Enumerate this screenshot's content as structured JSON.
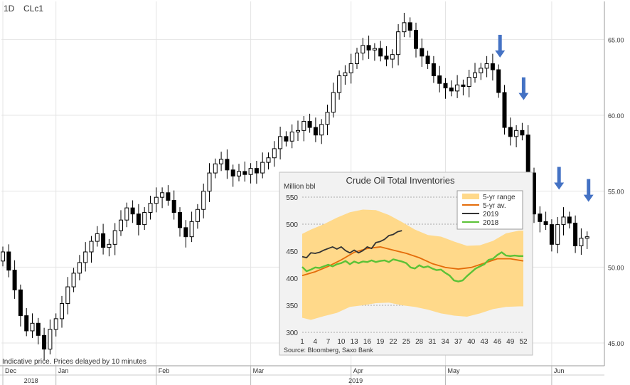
{
  "header": {
    "interval": "1D",
    "symbol": "CLc1"
  },
  "footer_note": "Indicative price. Prices delayed by 10 minutes",
  "colors": {
    "candle": "#000000",
    "arrow": "#4472C4",
    "grid": "#e4e4e4",
    "inset_bg": "#f2f2f2"
  },
  "chart_data": [
    {
      "type": "candlestick",
      "ylim": [
        43.5,
        67.5
      ],
      "y_ticks": [
        "45.00",
        "50.00",
        "55.00",
        "60.00",
        "65.00"
      ],
      "x_month_labels": [
        "Dec",
        "Jan",
        "Feb",
        "Mar",
        "Apr",
        "May",
        "Jun"
      ],
      "x_year_labels": [
        "2018",
        "2019"
      ],
      "close_path": [
        [
          0,
          51.0
        ],
        [
          1,
          49.8
        ],
        [
          2,
          48.5
        ],
        [
          3,
          46.8
        ],
        [
          4,
          45.8
        ],
        [
          5,
          46.3
        ],
        [
          6,
          45.5
        ],
        [
          7,
          44.6
        ],
        [
          8,
          45.9
        ],
        [
          9,
          46.6
        ],
        [
          10,
          47.6
        ],
        [
          11,
          48.7
        ],
        [
          12,
          49.6
        ],
        [
          13,
          50.3
        ],
        [
          14,
          51.0
        ],
        [
          15,
          51.7
        ],
        [
          16,
          52.2
        ],
        [
          17,
          51.3
        ],
        [
          18,
          51.5
        ],
        [
          19,
          52.4
        ],
        [
          20,
          53.1
        ],
        [
          21,
          53.9
        ],
        [
          22,
          53.5
        ],
        [
          23,
          52.8
        ],
        [
          24,
          53.6
        ],
        [
          25,
          54.2
        ],
        [
          26,
          54.6
        ],
        [
          27,
          54.9
        ],
        [
          28,
          54.4
        ],
        [
          29,
          53.6
        ],
        [
          30,
          52.6
        ],
        [
          31,
          52.0
        ],
        [
          32,
          53.0
        ],
        [
          33,
          53.8
        ],
        [
          34,
          55.0
        ],
        [
          35,
          56.2
        ],
        [
          36,
          56.8
        ],
        [
          37,
          57.1
        ],
        [
          38,
          56.4
        ],
        [
          39,
          56.0
        ],
        [
          40,
          56.3
        ],
        [
          41,
          56.1
        ],
        [
          42,
          56.5
        ],
        [
          43,
          56.2
        ],
        [
          44,
          56.9
        ],
        [
          45,
          57.2
        ],
        [
          46,
          57.8
        ],
        [
          47,
          58.6
        ],
        [
          48,
          58.3
        ],
        [
          49,
          58.9
        ],
        [
          50,
          59.0
        ],
        [
          51,
          59.6
        ],
        [
          52,
          59.2
        ],
        [
          53,
          58.7
        ],
        [
          54,
          59.4
        ],
        [
          55,
          60.2
        ],
        [
          56,
          61.5
        ],
        [
          57,
          62.6
        ],
        [
          58,
          62.8
        ],
        [
          59,
          63.4
        ],
        [
          60,
          64.1
        ],
        [
          61,
          64.6
        ],
        [
          62,
          64.3
        ],
        [
          63,
          64.4
        ],
        [
          64,
          63.9
        ],
        [
          65,
          63.7
        ],
        [
          66,
          64.0
        ],
        [
          67,
          65.5
        ],
        [
          68,
          66.1
        ],
        [
          69,
          65.6
        ],
        [
          70,
          64.4
        ],
        [
          71,
          63.9
        ],
        [
          72,
          63.4
        ],
        [
          73,
          62.6
        ],
        [
          74,
          62.1
        ],
        [
          75,
          61.8
        ],
        [
          76,
          61.6
        ],
        [
          77,
          62.0
        ],
        [
          78,
          61.9
        ],
        [
          79,
          62.5
        ],
        [
          80,
          62.8
        ],
        [
          81,
          63.1
        ],
        [
          82,
          63.4
        ],
        [
          83,
          63.0
        ],
        [
          84,
          61.5
        ],
        [
          85,
          59.2
        ],
        [
          86,
          58.6
        ],
        [
          87,
          59.0
        ],
        [
          88,
          58.7
        ],
        [
          89,
          56.2
        ],
        [
          90,
          53.5
        ],
        [
          91,
          53.0
        ],
        [
          92,
          52.8
        ],
        [
          93,
          51.5
        ],
        [
          94,
          52.8
        ],
        [
          95,
          53.3
        ],
        [
          96,
          52.9
        ],
        [
          97,
          51.4
        ],
        [
          98,
          51.9
        ],
        [
          99,
          52.0
        ]
      ],
      "arrows": [
        84,
        88,
        94,
        99
      ]
    },
    {
      "type": "line",
      "title": "Crude Oil Total Inventories",
      "ylabel": "Million bbl",
      "ylim": [
        300,
        550
      ],
      "y_ticks": [
        300,
        350,
        400,
        450,
        500,
        550
      ],
      "x_ticks": [
        1,
        4,
        7,
        10,
        13,
        16,
        19,
        22,
        25,
        28,
        31,
        34,
        37,
        40,
        43,
        46,
        49,
        52
      ],
      "source": "Source: Bloomberg, Saxo Bank",
      "legend": [
        "5-yr range",
        "5-yr av.",
        "2019",
        "2018"
      ],
      "range_min": [
        [
          1,
          327
        ],
        [
          3,
          323
        ],
        [
          6,
          330
        ],
        [
          9,
          336
        ],
        [
          12,
          347
        ],
        [
          15,
          350
        ],
        [
          18,
          354
        ],
        [
          21,
          355
        ],
        [
          24,
          350
        ],
        [
          27,
          347
        ],
        [
          30,
          342
        ],
        [
          33,
          335
        ],
        [
          36,
          331
        ],
        [
          39,
          329
        ],
        [
          42,
          335
        ],
        [
          45,
          343
        ],
        [
          48,
          347
        ],
        [
          51,
          348
        ],
        [
          52,
          348
        ]
      ],
      "range_max": [
        [
          1,
          482
        ],
        [
          3,
          490
        ],
        [
          6,
          500
        ],
        [
          9,
          512
        ],
        [
          12,
          522
        ],
        [
          15,
          527
        ],
        [
          18,
          526
        ],
        [
          21,
          517
        ],
        [
          24,
          504
        ],
        [
          27,
          490
        ],
        [
          30,
          480
        ],
        [
          33,
          477
        ],
        [
          36,
          468
        ],
        [
          39,
          460
        ],
        [
          42,
          461
        ],
        [
          45,
          469
        ],
        [
          48,
          483
        ],
        [
          51,
          488
        ],
        [
          52,
          488
        ]
      ],
      "series": [
        {
          "name": "5-yr av.",
          "color": "#E46C0A",
          "values": [
            [
              1,
              405
            ],
            [
              4,
              412
            ],
            [
              7,
              422
            ],
            [
              10,
              434
            ],
            [
              13,
              448
            ],
            [
              16,
              455
            ],
            [
              19,
              458
            ],
            [
              22,
              452
            ],
            [
              25,
              446
            ],
            [
              28,
              438
            ],
            [
              31,
              427
            ],
            [
              34,
              420
            ],
            [
              37,
              417
            ],
            [
              40,
              420
            ],
            [
              43,
              428
            ],
            [
              46,
              436
            ],
            [
              49,
              436
            ],
            [
              52,
              432
            ]
          ]
        },
        {
          "name": "2019",
          "color": "#333333",
          "values": [
            [
              1,
              440
            ],
            [
              2,
              438
            ],
            [
              3,
              447
            ],
            [
              4,
              446
            ],
            [
              5,
              448
            ],
            [
              6,
              452
            ],
            [
              7,
              455
            ],
            [
              8,
              458
            ],
            [
              9,
              454
            ],
            [
              10,
              458
            ],
            [
              11,
              451
            ],
            [
              12,
              447
            ],
            [
              13,
              452
            ],
            [
              14,
              447
            ],
            [
              15,
              451
            ],
            [
              16,
              458
            ],
            [
              17,
              455
            ],
            [
              18,
              466
            ],
            [
              19,
              468
            ],
            [
              20,
              472
            ],
            [
              21,
              479
            ],
            [
              22,
              481
            ],
            [
              23,
              486
            ],
            [
              24,
              488
            ]
          ]
        },
        {
          "name": "2018",
          "color": "#5BC236",
          "values": [
            [
              1,
              421
            ],
            [
              2,
              413
            ],
            [
              3,
              416
            ],
            [
              4,
              420
            ],
            [
              5,
              419
            ],
            [
              6,
              422
            ],
            [
              7,
              425
            ],
            [
              8,
              422
            ],
            [
              9,
              426
            ],
            [
              10,
              428
            ],
            [
              11,
              432
            ],
            [
              12,
              426
            ],
            [
              13,
              431
            ],
            [
              14,
              428
            ],
            [
              15,
              431
            ],
            [
              16,
              430
            ],
            [
              17,
              433
            ],
            [
              18,
              430
            ],
            [
              19,
              432
            ],
            [
              20,
              433
            ],
            [
              21,
              430
            ],
            [
              22,
              435
            ],
            [
              23,
              433
            ],
            [
              24,
              431
            ],
            [
              25,
              428
            ],
            [
              26,
              420
            ],
            [
              27,
              418
            ],
            [
              28,
              424
            ],
            [
              29,
              420
            ],
            [
              30,
              422
            ],
            [
              31,
              418
            ],
            [
              32,
              415
            ],
            [
              33,
              416
            ],
            [
              34,
              410
            ],
            [
              35,
              405
            ],
            [
              36,
              396
            ],
            [
              37,
              394
            ],
            [
              38,
              396
            ],
            [
              39,
              404
            ],
            [
              40,
              411
            ],
            [
              41,
              418
            ],
            [
              42,
              422
            ],
            [
              43,
              426
            ],
            [
              44,
              434
            ],
            [
              45,
              436
            ],
            [
              46,
              443
            ],
            [
              47,
              448
            ],
            [
              48,
              442
            ],
            [
              49,
              441
            ],
            [
              50,
              442
            ],
            [
              51,
              441
            ],
            [
              52,
              441
            ]
          ]
        }
      ]
    }
  ]
}
